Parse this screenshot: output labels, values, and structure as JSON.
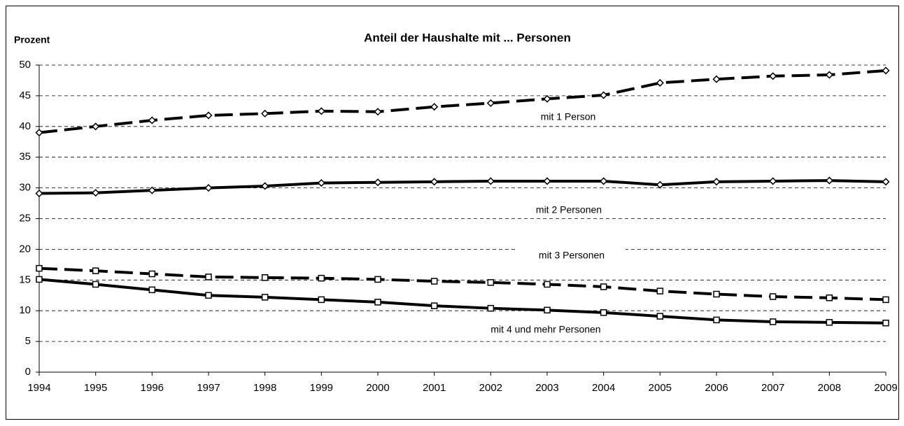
{
  "chart_data": {
    "type": "line",
    "title": "Anteil der Haushalte mit ... Personen",
    "y_label": "Prozent",
    "categories": [
      "1994",
      "1995",
      "1996",
      "1997",
      "1998",
      "1999",
      "2000",
      "2001",
      "2002",
      "2003",
      "2004",
      "2005",
      "2006",
      "2007",
      "2008",
      "2009"
    ],
    "series": [
      {
        "name": "mit 1 Person",
        "color": "#000000",
        "dash": true,
        "marker": "diamond",
        "values": [
          39,
          40,
          41,
          41.8,
          42.1,
          42.5,
          42.4,
          43.2,
          43.8,
          44.5,
          45.1,
          47.1,
          47.7,
          48.2,
          48.4,
          49.1
        ]
      },
      {
        "name": "mit 2 Personen",
        "color": "#000000",
        "dash": false,
        "marker": "diamond",
        "values": [
          29.1,
          29.2,
          29.6,
          30.0,
          30.3,
          30.8,
          30.9,
          31.0,
          31.1,
          31.1,
          31.1,
          30.5,
          31.0,
          31.1,
          31.2,
          31.0
        ]
      },
      {
        "name": "mit 3 Personen",
        "color": "#000000",
        "dash": true,
        "marker": "square",
        "values": [
          16.9,
          16.5,
          16.0,
          15.5,
          15.4,
          15.3,
          15.1,
          14.8,
          14.6,
          14.3,
          13.9,
          13.2,
          12.7,
          12.3,
          12.1,
          11.8
        ]
      },
      {
        "name": "mit 4 und mehr Personen",
        "color": "#000000",
        "dash": false,
        "marker": "square",
        "values": [
          15.1,
          14.3,
          13.4,
          12.5,
          12.2,
          11.8,
          11.4,
          10.8,
          10.4,
          10.1,
          9.7,
          9.1,
          8.5,
          8.2,
          8.1,
          8.0
        ]
      }
    ],
    "ylim": [
      0,
      50
    ],
    "yticks": [
      0,
      5,
      10,
      15,
      20,
      25,
      30,
      35,
      40,
      45,
      50
    ],
    "grid": true
  }
}
